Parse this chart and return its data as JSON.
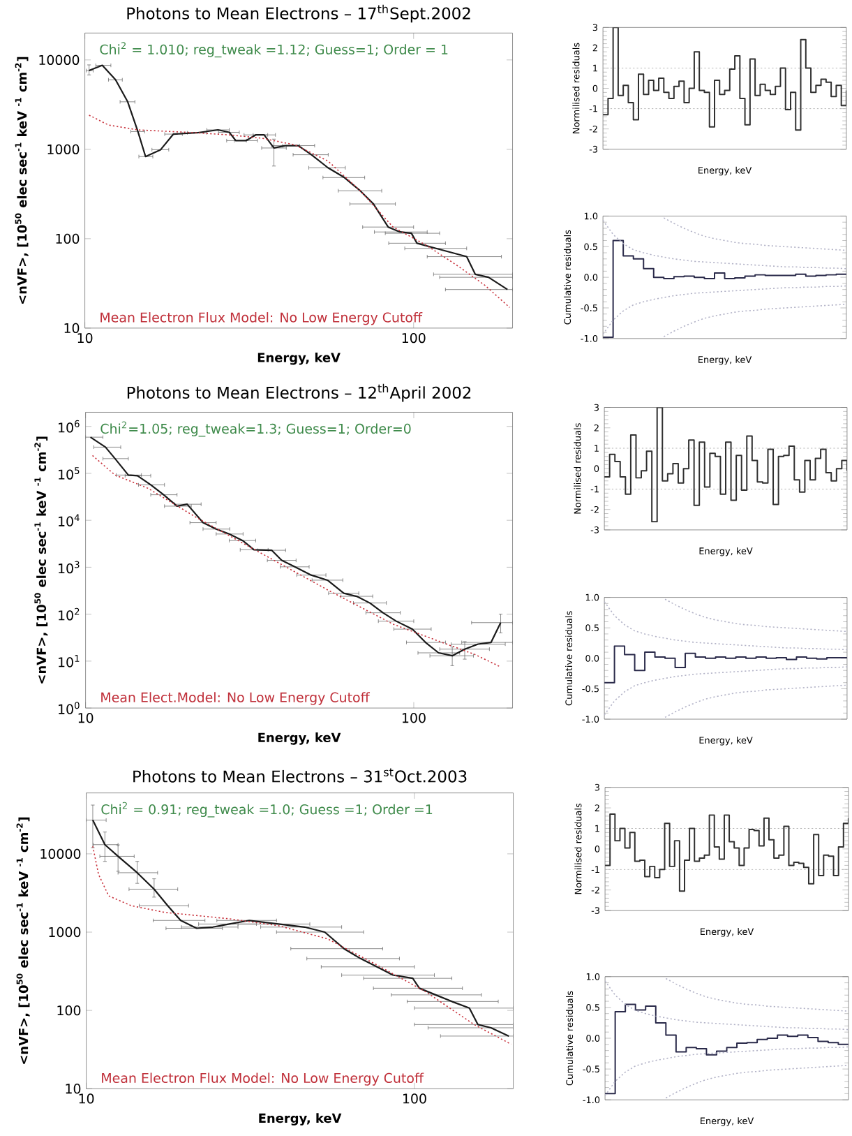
{
  "chart_data": [
    {
      "type": "line",
      "title": "Photons to Mean Electrons – 17$^{th}$Sept.2002",
      "xlabel": "Energy, keV",
      "ylabel": "<nVF>, [10$^{50}$ elec sec$^{-1}$ keV $^{-1}$ cm$^{-2}$]",
      "log": "xy",
      "xlim": [
        10,
        200
      ],
      "ylim": [
        10,
        20000
      ],
      "xticks": [
        10,
        100
      ],
      "yticks": [
        10,
        100,
        1000,
        10000
      ],
      "annotations": [
        "Chi$^{2}$ = 1.010; reg_tweak =1.12; Guess=1; Order = 1",
        "Mean Electron Flux Model: No Low Energy Cutoff"
      ],
      "series": [
        {
          "color": "#1a1a1a",
          "line_style": "solid",
          "x": [
            10.3,
            11.3,
            12.4,
            13.5,
            14.5,
            15.3,
            17.0,
            18.6,
            21.9,
            25.4,
            27.5,
            28.8,
            30.9,
            33.1,
            35.1,
            37.6,
            40.7,
            44.6,
            48.9,
            54.9,
            61.6,
            68.8,
            75.5,
            83.7,
            90.9,
            98.5,
            102.4,
            117,
            145,
            154,
            169,
            193
          ],
          "values": [
            7600,
            8700,
            6000,
            3400,
            1580,
            830,
            990,
            1480,
            1530,
            1650,
            1550,
            1250,
            1250,
            1450,
            1450,
            1035,
            1100,
            1100,
            870,
            622,
            483,
            344,
            245,
            135,
            119,
            115,
            89,
            78,
            63,
            40,
            37,
            27
          ],
          "xerrors": [
            [
              10.1,
              10.6
            ],
            [
              10.8,
              12
            ],
            [
              11.8,
              13
            ],
            [
              12.8,
              14.2
            ],
            [
              13.8,
              15.2
            ],
            [
              14.6,
              16.1
            ],
            [
              16,
              18
            ],
            [
              17.5,
              19.8
            ],
            [
              20.5,
              23.5
            ],
            [
              23.5,
              27.5
            ],
            [
              25.5,
              29.5
            ],
            [
              27,
              31
            ],
            [
              28.5,
              33.5
            ],
            [
              30.5,
              36
            ],
            [
              32.5,
              38
            ],
            [
              34.5,
              41
            ],
            [
              37,
              45
            ],
            [
              40,
              50
            ],
            [
              43,
              55
            ],
            [
              48,
              62
            ],
            [
              53,
              71
            ],
            [
              59,
              80
            ],
            [
              64,
              88
            ],
            [
              70,
              100
            ],
            [
              76,
              110
            ],
            [
              82,
              120
            ],
            [
              84,
              125
            ],
            [
              94,
              145
            ],
            [
              110,
              185
            ],
            [
              115,
              200
            ],
            [
              120,
              200
            ],
            [
              125,
              200
            ]
          ],
          "errors": [
            [
              6800,
              8800
            ],
            null,
            null,
            null,
            null,
            null,
            null,
            null,
            null,
            null,
            null,
            null,
            null,
            null,
            null,
            [
              650,
              1300
            ],
            null,
            null,
            null,
            null,
            null,
            null,
            null,
            null,
            null,
            null,
            null,
            null,
            null,
            null,
            null,
            null
          ]
        },
        {
          "color": "#c8323c",
          "line_style": "dotted",
          "x": [
            10.3,
            11.8,
            14.5,
            21.9,
            27.5,
            34.6,
            43.6,
            54.9,
            68.8,
            86.6,
            109,
            137,
            165,
            196
          ],
          "values": [
            2410,
            1870,
            1650,
            1530,
            1450,
            1330,
            1120,
            740,
            344,
            135,
            85,
            49,
            30,
            17
          ]
        }
      ]
    },
    {
      "type": "step",
      "xlabel": "Energy, keV",
      "ylabel": "Normilised residuals",
      "tick_labels": "y",
      "ylim": [
        -3,
        3
      ],
      "yticks": [
        -3,
        -2,
        -1,
        0,
        1,
        2,
        3
      ],
      "color": "#303030",
      "categories": [
        null,
        null,
        null,
        null,
        null,
        null,
        null,
        null,
        null,
        null,
        null,
        null,
        null,
        null,
        null,
        null,
        null,
        null,
        null,
        null,
        null,
        null,
        null,
        null,
        null,
        null,
        null,
        null,
        null,
        null,
        null,
        null,
        null,
        null,
        null,
        null,
        null,
        null,
        null,
        null,
        null,
        null,
        null,
        null,
        null,
        null,
        null,
        null,
        null
      ],
      "values": [
        -1.3,
        -0.5,
        3,
        -0.35,
        0.15,
        -0.7,
        -1.55,
        0.7,
        -0.3,
        0.4,
        -0.1,
        0.5,
        -0.2,
        -0.5,
        0.1,
        0.35,
        -0.7,
        0.0,
        1.8,
        -0.1,
        -0.2,
        -1.9,
        0.4,
        -0.3,
        -0.1,
        0.95,
        1.6,
        -0.5,
        -1.8,
        1.45,
        -0.35,
        0.2,
        -0.1,
        -0.3,
        0.1,
        1.0,
        -1.05,
        -0.2,
        -2.05,
        2.4,
        1.0,
        -0.2,
        0.15,
        0.45,
        0.3,
        -0.4,
        0.15,
        -0.85,
        -0.1
      ],
      "ref_lines": [
        {
          "axis": "y",
          "value": 1,
          "color": "#b4b4b4",
          "line_style": "dotted"
        },
        {
          "axis": "y",
          "value": -1,
          "color": "#b4b4b4",
          "line_style": "dotted"
        }
      ]
    },
    {
      "type": "step",
      "xlabel": "Energy, keV",
      "ylabel": "Cumulative residuals",
      "tick_labels": "y",
      "ylim": [
        -1,
        1
      ],
      "yticks": [
        {
          "value": -1,
          "label": "-1.0"
        },
        -0.5,
        {
          "value": 0,
          "label": "0.0"
        },
        0.5,
        {
          "value": 1,
          "label": "1.0"
        }
      ],
      "categories": [
        null,
        null,
        null,
        null,
        null,
        null,
        null,
        null,
        null,
        null,
        null,
        null,
        null,
        null,
        null,
        null,
        null,
        null,
        null,
        null,
        null,
        null,
        null,
        null,
        null
      ],
      "series": [
        {
          "color": "#2a2a4a",
          "values": [
            -0.98,
            0.6,
            0.35,
            0.3,
            0.14,
            0.0,
            -0.02,
            0.01,
            0.02,
            0.0,
            -0.02,
            0.07,
            -0.02,
            -0.01,
            0.02,
            0.04,
            0.03,
            0.03,
            0.03,
            0.05,
            0.02,
            0.03,
            0.04,
            0.05,
            0.04
          ]
        },
        {
          "type": "line",
          "color": "#b4b4c8",
          "line_style": "dotted",
          "values": [
            0.93,
            0.7,
            0.55,
            0.45,
            0.4,
            0.36,
            0.33,
            0.3,
            0.28,
            0.26,
            0.25,
            0.24,
            0.23,
            0.22,
            0.21,
            0.2,
            0.19,
            0.18,
            0.17,
            0.17,
            0.16,
            0.16,
            0.15,
            0.15,
            0.14
          ]
        },
        {
          "type": "line",
          "color": "#b4b4c8",
          "line_style": "dotted",
          "values": [
            null,
            null,
            null,
            null,
            null,
            null,
            0.97,
            0.88,
            0.8,
            0.73,
            0.67,
            0.63,
            0.6,
            0.57,
            0.55,
            0.54,
            0.52,
            0.51,
            0.5,
            0.49,
            0.48,
            0.47,
            0.46,
            0.45,
            0.44
          ]
        },
        {
          "type": "line",
          "color": "#b4b4c8",
          "line_style": "dotted",
          "values": [
            -0.93,
            -0.7,
            -0.55,
            -0.45,
            -0.4,
            -0.36,
            -0.33,
            -0.3,
            -0.28,
            -0.26,
            -0.25,
            -0.24,
            -0.23,
            -0.22,
            -0.21,
            -0.2,
            -0.19,
            -0.18,
            -0.17,
            -0.17,
            -0.16,
            -0.16,
            -0.15,
            -0.15,
            -0.14
          ]
        },
        {
          "type": "line",
          "color": "#b4b4c8",
          "line_style": "dotted",
          "values": [
            null,
            null,
            null,
            null,
            null,
            null,
            -0.97,
            -0.88,
            -0.8,
            -0.73,
            -0.67,
            -0.63,
            -0.6,
            -0.57,
            -0.55,
            -0.54,
            -0.52,
            -0.51,
            -0.5,
            -0.49,
            -0.48,
            -0.47,
            -0.46,
            -0.45,
            -0.44
          ]
        }
      ]
    },
    {
      "type": "line",
      "title": "Photons to Mean Electrons – 12$^{th}$April 2002",
      "xlabel": "Energy, keV",
      "ylabel": "<nVF>, [10$^{50}$ elec sec$^{-1}$ keV $^{-1}$ cm$^{-2}$]",
      "log": "xy",
      "xlim": [
        10,
        200
      ],
      "ylim": [
        1,
        2000000
      ],
      "xticks": [
        10,
        100
      ],
      "yticks": [
        {
          "value": 1,
          "label": "10$^{0}$"
        },
        {
          "value": 10,
          "label": "10$^{1}$"
        },
        {
          "value": 100,
          "label": "10$^{2}$"
        },
        {
          "value": 1000,
          "label": "10$^{3}$"
        },
        {
          "value": 10000,
          "label": "10$^{4}$"
        },
        {
          "value": 100000,
          "label": "10$^{5}$"
        },
        {
          "value": 1000000,
          "label": "10$^{6}$"
        }
      ],
      "annotations": [
        "Chi$^{2}$=1.05; reg_tweak=1.3; Guess=1; Order=0",
        "Mean Elect.Model: No Low Energy Cutoff"
      ],
      "series": [
        {
          "color": "#1a1a1a",
          "line_style": "solid",
          "x": [
            10.35,
            11.5,
            12.3,
            13.5,
            14.4,
            15.8,
            17.3,
            19.0,
            20.4,
            22.8,
            25.0,
            27.4,
            30.1,
            32.6,
            36.9,
            39.6,
            43.4,
            48.7,
            54.6,
            61.2,
            67.0,
            73.5,
            80.6,
            88.4,
            99,
            108.6,
            119,
            131,
            143,
            157,
            172,
            184
          ],
          "values": [
            590000,
            362000,
            206000,
            92000,
            89000,
            57000,
            35000,
            20000,
            22000,
            8900,
            6500,
            5100,
            3700,
            2350,
            2300,
            1400,
            1020,
            680,
            530,
            280,
            240,
            173,
            107,
            71,
            48,
            25,
            15,
            13,
            18,
            23,
            25,
            66
          ],
          "xerrors": [
            [
              10,
              11.3
            ],
            [
              10.6,
              12.8
            ],
            [
              11.3,
              13.5
            ],
            [
              12.4,
              14.8
            ],
            [
              13.2,
              15.8
            ],
            [
              14.5,
              17.4
            ],
            [
              15.8,
              19
            ],
            [
              17.4,
              21
            ],
            [
              18.7,
              22.5
            ],
            [
              20.8,
              25
            ],
            [
              22.8,
              27.5
            ],
            [
              25,
              30.2
            ],
            [
              27.4,
              33
            ],
            [
              29.6,
              36
            ],
            [
              33.5,
              40.7
            ],
            [
              35.8,
              43.8
            ],
            [
              39.2,
              48
            ],
            [
              44,
              54
            ],
            [
              49,
              60.8
            ],
            [
              55,
              68
            ],
            [
              60,
              75
            ],
            [
              65.5,
              82.5
            ],
            [
              71.5,
              91
            ],
            [
              78,
              100
            ],
            [
              87,
              113
            ],
            [
              95,
              125
            ],
            [
              103,
              138
            ],
            [
              112,
              152
            ],
            [
              120,
              170
            ],
            [
              130,
              190
            ],
            [
              140,
              200
            ],
            [
              150,
              200
            ]
          ],
          "errors": [
            null,
            null,
            null,
            null,
            null,
            null,
            null,
            null,
            null,
            null,
            null,
            null,
            null,
            null,
            null,
            null,
            null,
            null,
            null,
            null,
            null,
            null,
            null,
            null,
            null,
            null,
            null,
            [
              8,
              20
            ],
            [
              11,
              26
            ],
            null,
            null,
            [
              40,
              100
            ]
          ]
        },
        {
          "color": "#c8323c",
          "line_style": "dotted",
          "x": [
            10.5,
            12.3,
            15.5,
            21.8,
            34.5,
            54.6,
            86.6,
            122,
            153,
            184
          ],
          "values": [
            240000,
            92000,
            48000,
            11400,
            1940,
            330,
            61,
            25,
            14,
            7.5
          ]
        }
      ]
    },
    {
      "type": "step",
      "xlabel": "Energy, keV",
      "ylabel": "Normilised residuals",
      "tick_labels": "y",
      "ylim": [
        -3,
        3
      ],
      "yticks": [
        -3,
        -2,
        -1,
        0,
        1,
        2,
        3
      ],
      "color": "#303030",
      "categories": [
        null,
        null,
        null,
        null,
        null,
        null,
        null,
        null,
        null,
        null,
        null,
        null,
        null,
        null,
        null,
        null,
        null,
        null,
        null,
        null,
        null,
        null,
        null,
        null,
        null,
        null,
        null,
        null,
        null,
        null,
        null,
        null,
        null,
        null,
        null,
        null,
        null,
        null,
        null,
        null,
        null,
        null,
        null,
        null,
        null,
        null,
        null
      ],
      "values": [
        -0.4,
        0.7,
        0.35,
        -0.4,
        -1.25,
        1.65,
        -0.45,
        -0.1,
        0.85,
        -2.6,
        3,
        -0.6,
        -0.25,
        0.25,
        -0.7,
        0.0,
        1.4,
        -1.8,
        1.3,
        -0.9,
        0.75,
        0.6,
        -1.25,
        1.3,
        -1.55,
        0.65,
        -1.05,
        1.6,
        0.4,
        -0.65,
        -0.7,
        0.95,
        -1.75,
        0.6,
        0.65,
        1.1,
        -0.55,
        -1.15,
        0.4,
        -0.55,
        0.5,
        0.95,
        -0.2,
        -0.6,
        0.0,
        0.4,
        -0.1
      ],
      "ref_lines": [
        {
          "axis": "y",
          "value": 1,
          "color": "#b4b4b4",
          "line_style": "dotted"
        },
        {
          "axis": "y",
          "value": -1,
          "color": "#b4b4b4",
          "line_style": "dotted"
        }
      ]
    },
    {
      "type": "step",
      "xlabel": "Energy, keV",
      "ylabel": "Cumulative residuals",
      "tick_labels": "y",
      "ylim": [
        -1,
        1
      ],
      "yticks": [
        {
          "value": -1,
          "label": "-1.0"
        },
        -0.5,
        {
          "value": 0,
          "label": "0.0"
        },
        0.5,
        {
          "value": 1,
          "label": "1.0"
        }
      ],
      "categories": [
        null,
        null,
        null,
        null,
        null,
        null,
        null,
        null,
        null,
        null,
        null,
        null,
        null,
        null,
        null,
        null,
        null,
        null,
        null,
        null,
        null,
        null,
        null,
        null,
        null
      ],
      "series": [
        {
          "color": "#2a2a4a",
          "values": [
            -0.4,
            0.2,
            0.06,
            -0.2,
            0.1,
            0.02,
            0.0,
            -0.15,
            0.08,
            0.02,
            0.0,
            0.02,
            0.0,
            0.02,
            0.0,
            0.02,
            0.0,
            0.01,
            -0.02,
            0.02,
            0.0,
            -0.01,
            0.01,
            0.01,
            0.01
          ]
        },
        {
          "type": "line",
          "color": "#b4b4c8",
          "line_style": "dotted",
          "values": [
            0.93,
            0.7,
            0.55,
            0.45,
            0.4,
            0.36,
            0.33,
            0.3,
            0.28,
            0.26,
            0.25,
            0.24,
            0.23,
            0.22,
            0.21,
            0.2,
            0.19,
            0.18,
            0.17,
            0.17,
            0.16,
            0.16,
            0.15,
            0.15,
            0.14
          ]
        },
        {
          "type": "line",
          "color": "#b4b4c8",
          "line_style": "dotted",
          "values": [
            null,
            null,
            null,
            null,
            null,
            null,
            0.97,
            0.88,
            0.8,
            0.73,
            0.67,
            0.63,
            0.6,
            0.57,
            0.55,
            0.54,
            0.52,
            0.51,
            0.5,
            0.49,
            0.48,
            0.47,
            0.46,
            0.45,
            0.44
          ]
        },
        {
          "type": "line",
          "color": "#b4b4c8",
          "line_style": "dotted",
          "values": [
            -0.93,
            -0.7,
            -0.55,
            -0.45,
            -0.4,
            -0.36,
            -0.33,
            -0.3,
            -0.28,
            -0.26,
            -0.25,
            -0.24,
            -0.23,
            -0.22,
            -0.21,
            -0.2,
            -0.19,
            -0.18,
            -0.17,
            -0.17,
            -0.16,
            -0.16,
            -0.15,
            -0.15,
            -0.14
          ]
        },
        {
          "type": "line",
          "color": "#b4b4c8",
          "line_style": "dotted",
          "values": [
            null,
            null,
            null,
            null,
            null,
            null,
            -0.97,
            -0.88,
            -0.8,
            -0.73,
            -0.67,
            -0.63,
            -0.6,
            -0.57,
            -0.55,
            -0.54,
            -0.52,
            -0.51,
            -0.5,
            -0.49,
            -0.48,
            -0.47,
            -0.46,
            -0.45,
            -0.44
          ]
        }
      ]
    },
    {
      "type": "line",
      "title": "Photons to Mean Electrons – 31$^{st}$Oct.2003",
      "xlabel": "Energy, keV",
      "ylabel": "<nVF>, [10$^{50}$ elec sec$^{-1}$ keV $^{-1}$ cm$^{-2}$]",
      "log": "xy",
      "xlim": [
        10,
        200
      ],
      "ylim": [
        10,
        60000
      ],
      "xticks": [
        10,
        100
      ],
      "yticks": [
        10,
        100,
        1000,
        10000
      ],
      "annotations": [
        "Chi$^{2}$ = 0.91; reg_tweak =1.0; Guess =1; Order =1",
        "Mean Electron Flux Model: No Low Energy Cutoff"
      ],
      "series": [
        {
          "color": "#1a1a1a",
          "line_style": "solid",
          "x": [
            10.47,
            11.4,
            12.5,
            14.3,
            16.1,
            17.7,
            19.4,
            21.7,
            24.3,
            27.3,
            31.4,
            38.5,
            46.3,
            53.3,
            61.0,
            68.5,
            76.9,
            86.0,
            98.8,
            103.5,
            116,
            130,
            147,
            156,
            171,
            194
          ],
          "values": [
            27000,
            13100,
            9300,
            5740,
            3540,
            2180,
            1410,
            1120,
            1160,
            1270,
            1410,
            1270,
            1160,
            1000,
            615,
            460,
            360,
            283,
            257,
            192,
            158,
            130,
            107,
            66,
            60,
            47
          ],
          "xerrors": [
            [
              10,
              11.5
            ],
            [
              10.5,
              12.5
            ],
            [
              11,
              14
            ],
            [
              12.5,
              16.5
            ],
            [
              13.5,
              19
            ],
            [
              14.5,
              20.5
            ],
            [
              16,
              23
            ],
            [
              17.5,
              26
            ],
            [
              19.5,
              29
            ],
            [
              22,
              33
            ],
            [
              25,
              38
            ],
            [
              29,
              48
            ],
            [
              34,
              60
            ],
            [
              38,
              70
            ],
            [
              42,
              80
            ],
            [
              47,
              90
            ],
            [
              52,
              100
            ],
            [
              60,
              115
            ],
            [
              70,
              130
            ],
            [
              75,
              140
            ],
            [
              85,
              160
            ],
            [
              95,
              180
            ],
            [
              100,
              200
            ],
            [
              100,
              200
            ],
            [
              110,
              200
            ],
            [
              120,
              200
            ]
          ],
          "errors": [
            [
              12000,
              42000
            ],
            [
              8000,
              19000
            ],
            [
              6000,
              13000
            ],
            [
              4200,
              8000
            ],
            [
              2800,
              4800
            ],
            null,
            null,
            null,
            null,
            null,
            null,
            null,
            null,
            null,
            null,
            null,
            null,
            null,
            null,
            null,
            null,
            null,
            null,
            null,
            null,
            null
          ]
        },
        {
          "color": "#c8323c",
          "line_style": "dotted",
          "x": [
            10.47,
            10.9,
            11.7,
            13.7,
            17.3,
            21.7,
            27.3,
            38.5,
            54.4,
            76.9,
            108,
            152,
            197
          ],
          "values": [
            12500,
            5470,
            2910,
            2180,
            1790,
            1630,
            1480,
            1210,
            820,
            380,
            174,
            66,
            37
          ]
        }
      ]
    },
    {
      "type": "step",
      "xlabel": "Energy, keV",
      "ylabel": "Normilised residuals",
      "tick_labels": "y",
      "ylim": [
        -3,
        3
      ],
      "yticks": [
        -3,
        -2,
        -1,
        0,
        1,
        2,
        3
      ],
      "color": "#303030",
      "categories": [
        null,
        null,
        null,
        null,
        null,
        null,
        null,
        null,
        null,
        null,
        null,
        null,
        null,
        null,
        null,
        null,
        null,
        null,
        null,
        null,
        null,
        null,
        null,
        null,
        null,
        null,
        null,
        null,
        null,
        null,
        null,
        null,
        null,
        null,
        null,
        null,
        null,
        null,
        null,
        null,
        null,
        null,
        null,
        null,
        null,
        null,
        null,
        null,
        null,
        null
      ],
      "values": [
        -0.8,
        1.7,
        0.4,
        1.0,
        0.05,
        0.8,
        -0.6,
        -0.55,
        -1.35,
        -0.85,
        -1.4,
        -1.0,
        1.25,
        -0.85,
        0.4,
        -2.05,
        -0.55,
        1.0,
        -0.6,
        -0.45,
        -0.3,
        1.65,
        0.1,
        -0.5,
        1.65,
        0.35,
        0.05,
        -0.8,
        0.05,
        0.95,
        0.9,
        0.15,
        1.5,
        0.45,
        -0.45,
        -0.3,
        1.1,
        -0.8,
        -0.65,
        -0.7,
        -0.9,
        -1.7,
        0.7,
        -1.3,
        -0.3,
        -0.35,
        -1.3,
        0.1,
        1.25,
        1.5
      ],
      "ref_lines": [
        {
          "axis": "y",
          "value": 1,
          "color": "#b4b4b4",
          "line_style": "dotted"
        },
        {
          "axis": "y",
          "value": -1,
          "color": "#b4b4b4",
          "line_style": "dotted"
        }
      ]
    },
    {
      "type": "step",
      "xlabel": "Energy, keV",
      "ylabel": "Cumulative residuals",
      "tick_labels": "y",
      "ylim": [
        -1,
        1
      ],
      "yticks": [
        {
          "value": -1,
          "label": "-1.0"
        },
        -0.5,
        {
          "value": 0,
          "label": "0.0"
        },
        0.5,
        {
          "value": 1,
          "label": "1.0"
        }
      ],
      "categories": [
        null,
        null,
        null,
        null,
        null,
        null,
        null,
        null,
        null,
        null,
        null,
        null,
        null,
        null,
        null,
        null,
        null,
        null,
        null,
        null,
        null,
        null,
        null,
        null,
        null
      ],
      "series": [
        {
          "color": "#2a2a4a",
          "values": [
            -0.9,
            0.43,
            0.55,
            0.46,
            0.52,
            0.25,
            0.05,
            -0.22,
            -0.15,
            -0.17,
            -0.27,
            -0.21,
            -0.15,
            -0.08,
            -0.07,
            -0.02,
            0.0,
            0.05,
            0.03,
            0.05,
            0.01,
            -0.05,
            -0.07,
            -0.1,
            -0.11
          ]
        },
        {
          "type": "line",
          "color": "#b4b4c8",
          "line_style": "dotted",
          "values": [
            0.93,
            0.7,
            0.55,
            0.45,
            0.4,
            0.36,
            0.33,
            0.3,
            0.28,
            0.26,
            0.25,
            0.24,
            0.23,
            0.22,
            0.21,
            0.2,
            0.19,
            0.18,
            0.17,
            0.17,
            0.16,
            0.16,
            0.15,
            0.15,
            0.14
          ]
        },
        {
          "type": "line",
          "color": "#b4b4c8",
          "line_style": "dotted",
          "values": [
            null,
            null,
            null,
            null,
            null,
            null,
            0.97,
            0.88,
            0.8,
            0.73,
            0.67,
            0.63,
            0.6,
            0.57,
            0.55,
            0.54,
            0.52,
            0.51,
            0.5,
            0.49,
            0.48,
            0.47,
            0.46,
            0.45,
            0.44
          ]
        },
        {
          "type": "line",
          "color": "#b4b4c8",
          "line_style": "dotted",
          "values": [
            -0.93,
            -0.7,
            -0.55,
            -0.45,
            -0.4,
            -0.36,
            -0.33,
            -0.3,
            -0.28,
            -0.26,
            -0.25,
            -0.24,
            -0.23,
            -0.22,
            -0.21,
            -0.2,
            -0.19,
            -0.18,
            -0.17,
            -0.17,
            -0.16,
            -0.16,
            -0.15,
            -0.15,
            -0.14
          ]
        },
        {
          "type": "line",
          "color": "#b4b4c8",
          "line_style": "dotted",
          "values": [
            null,
            null,
            null,
            null,
            null,
            null,
            -0.97,
            -0.88,
            -0.8,
            -0.73,
            -0.67,
            -0.63,
            -0.6,
            -0.57,
            -0.55,
            -0.54,
            -0.52,
            -0.51,
            -0.5,
            -0.49,
            -0.48,
            -0.47,
            -0.46,
            -0.45,
            -0.44
          ]
        }
      ]
    }
  ]
}
